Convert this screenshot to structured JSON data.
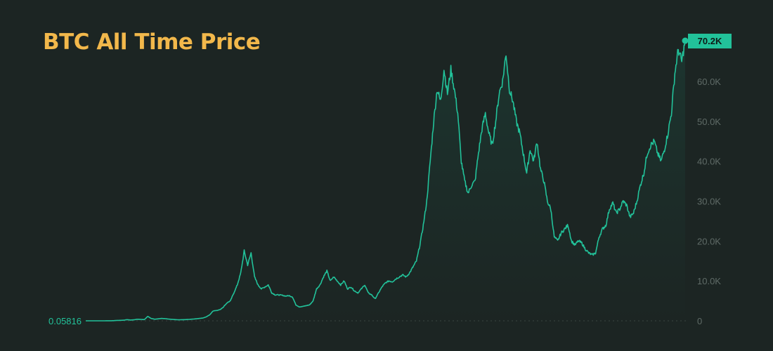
{
  "chart": {
    "title": "BTC All Time Price"
  },
  "colors": {
    "background": "#1c2523",
    "title": "#f2b84b",
    "line": "#22c29a",
    "badge": "#22c29a",
    "badge_text": "#0f1a17",
    "tick_text": "#5f6b67"
  },
  "chart_data": {
    "type": "area",
    "title": "BTC All Time Price",
    "xlabel": "",
    "ylabel": "",
    "ylim": [
      0,
      70200
    ],
    "y_ticks": [
      0,
      10000,
      20000,
      30000,
      40000,
      50000,
      60000
    ],
    "y_tick_labels": [
      "0",
      "10.0K",
      "20.0K",
      "30.0K",
      "40.0K",
      "50.0K",
      "60.0K"
    ],
    "start_value": 0.05816,
    "start_label": "0.05816",
    "current_value": 70200,
    "current_label": "70.2K",
    "grid": false,
    "legend": "none",
    "series": [
      {
        "values": [
          0.05816,
          0.07,
          0.1,
          0.3,
          1,
          5,
          10,
          20,
          30,
          100,
          120,
          150,
          300,
          200,
          250,
          400,
          350,
          300,
          1100,
          600,
          400,
          500,
          600,
          550,
          430,
          380,
          300,
          250,
          280,
          300,
          350,
          420,
          500,
          600,
          700,
          1000,
          1500,
          2500,
          2600,
          2800,
          3500,
          4500,
          5000,
          7000,
          9000,
          12000,
          17500,
          14000,
          17000,
          11000,
          9000,
          8000,
          8500,
          9000,
          7000,
          6500,
          6500,
          6400,
          6200,
          6300,
          6000,
          4000,
          3500,
          3600,
          3800,
          4000,
          5000,
          8000,
          9000,
          11000,
          12500,
          10000,
          11000,
          10000,
          9000,
          10000,
          8000,
          8500,
          7500,
          7000,
          8000,
          9000,
          7000,
          6500,
          5500,
          7000,
          8500,
          9500,
          10000,
          9800,
          10500,
          11000,
          11500,
          11000,
          12000,
          13500,
          15000,
          19000,
          24000,
          30000,
          40000,
          50000,
          58000,
          55000,
          63000,
          57000,
          63000,
          58000,
          52000,
          40000,
          35000,
          32000,
          34000,
          35000,
          42000,
          48000,
          52000,
          47000,
          44000,
          50000,
          57000,
          60000,
          67000,
          58000,
          55000,
          50000,
          47000,
          42000,
          37000,
          43000,
          40000,
          45000,
          38000,
          35000,
          30000,
          28000,
          21000,
          20000,
          22000,
          23000,
          24000,
          20000,
          19000,
          20000,
          19500,
          18000,
          17000,
          16500,
          17000,
          21000,
          23000,
          24000,
          28000,
          29500,
          27000,
          28000,
          30000,
          29000,
          26000,
          27000,
          30000,
          34000,
          37000,
          42000,
          44000,
          45000,
          42000,
          40000,
          43000,
          47000,
          52000,
          62000,
          68000,
          65000,
          70200
        ]
      }
    ]
  }
}
